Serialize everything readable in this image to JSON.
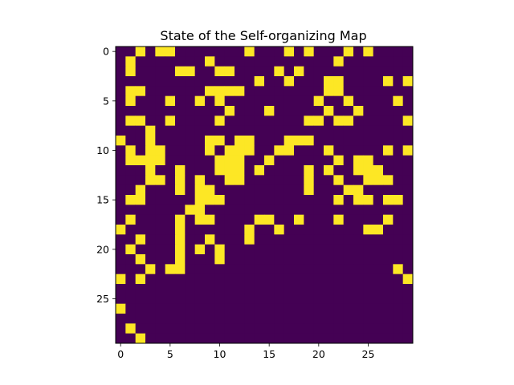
{
  "chart_data": {
    "type": "heatmap",
    "title": "State of the Self-organizing Map",
    "xlabel": "",
    "ylabel": "",
    "xlim": [
      -0.5,
      29.5
    ],
    "ylim": [
      29.5,
      -0.5
    ],
    "x_ticks": [
      0,
      5,
      10,
      15,
      20,
      25
    ],
    "y_ticks": [
      0,
      5,
      10,
      15,
      20,
      25
    ],
    "grid": false,
    "colormap": "viridis",
    "colors": {
      "0": "#440154",
      "1": "#fde725"
    },
    "rows": [
      "001011000000010001010001010000",
      "010000000100000000000010000000",
      "010000110011000010100000000000",
      "000000000000001001000110000101",
      "011000000111100000000110000000",
      "010001001010000000001001000010",
      "000000000001000100000100100000",
      "011001000010000000011011000001",
      "000100000000000000000000000000",
      "100100000110110001110000000000",
      "010110000101110011000100000101",
      "011110000011100100000010110000",
      "000100100011101000010100111000",
      "000110101001100000010010011100",
      "001000101100000000010001100000",
      "011000001110000000000010110110",
      "000000011000000000000000000000",
      "010000101100001100100010000100",
      "100000100000010010000000011000",
      "001000100100010000000000000000",
      "010000101010000000000000000000",
      "001000100010000000000000000000",
      "000101100000000000000000000010",
      "101000000000000000000000000001",
      "000000000000000000000000000000",
      "000000000000000000000000000000",
      "100000000000000000000000000000",
      "000000000000000000000000000000",
      "010000000000000000000000000000",
      "001000000000000000000000000000"
    ]
  }
}
